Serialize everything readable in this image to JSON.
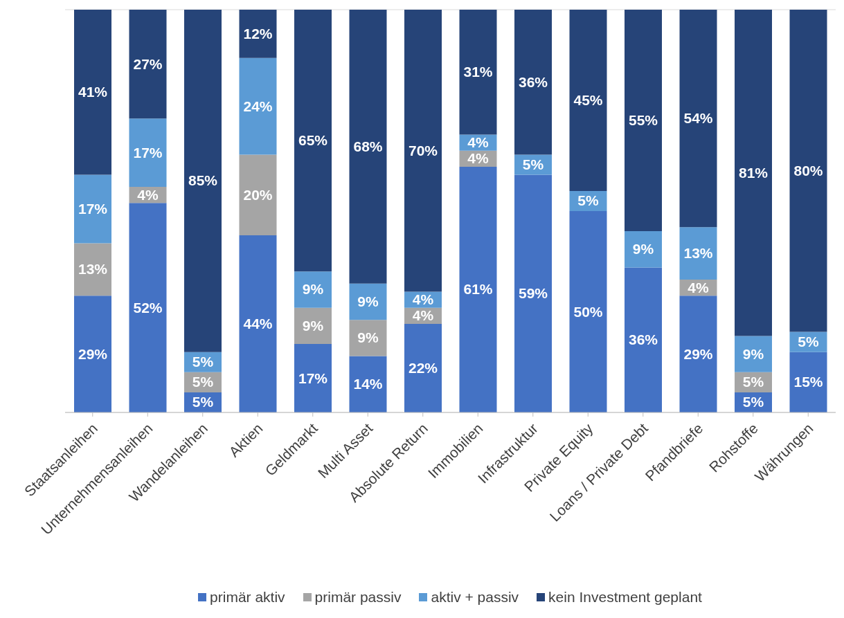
{
  "chart_data": {
    "type": "bar",
    "stacked": true,
    "categories": [
      "Staatsanleihen",
      "Unternehmensanleihen",
      "Wandelanleihen",
      "Aktien",
      "Geldmarkt",
      "Multi Asset",
      "Absolute Return",
      "Immobilien",
      "Infrastruktur",
      "Private Equity",
      "Loans / Private Debt",
      "Pfandbriefe",
      "Rohstoffe",
      "Währungen"
    ],
    "ylim": [
      0,
      100
    ],
    "grid": "y",
    "tick_labels": "x",
    "legend": "bottom",
    "series": [
      {
        "name": "primär aktiv",
        "color": "#4472c4",
        "values": [
          29,
          52,
          5,
          44,
          17,
          14,
          22,
          61,
          59,
          50,
          36,
          29,
          5,
          15
        ],
        "value_labels": [
          "29%",
          "52%",
          "5%",
          "44%",
          "17%",
          "14%",
          "22%",
          "61%",
          "59%",
          "50%",
          "36%",
          "29%",
          "5%",
          "15%"
        ]
      },
      {
        "name": "primär passiv",
        "color": "#a5a5a5",
        "values": [
          13,
          4,
          5,
          20,
          9,
          9,
          4,
          4,
          null,
          null,
          null,
          4,
          5,
          null
        ],
        "value_labels": [
          "13%",
          "4%",
          "5%",
          "20%",
          "9%",
          "9%",
          "4%",
          "4%",
          null,
          null,
          null,
          "4%",
          "5%",
          null
        ]
      },
      {
        "name": "aktiv + passiv",
        "color": "#5b9bd5",
        "values": [
          17,
          17,
          5,
          24,
          9,
          9,
          4,
          4,
          5,
          5,
          9,
          13,
          9,
          5
        ],
        "value_labels": [
          "17%",
          "17%",
          "5%",
          "24%",
          "9%",
          "9%",
          "4%",
          "4%",
          "5%",
          "5%",
          "9%",
          "13%",
          "9%",
          "5%"
        ]
      },
      {
        "name": "kein Investment geplant",
        "color": "#264478",
        "values": [
          41,
          27,
          85,
          12,
          65,
          68,
          70,
          31,
          36,
          45,
          55,
          54,
          81,
          80
        ],
        "value_labels": [
          "41%",
          "27%",
          "85%",
          "12%",
          "65%",
          "68%",
          "70%",
          "31%",
          "36%",
          "45%",
          "55%",
          "54%",
          "81%",
          "80%"
        ]
      }
    ]
  }
}
